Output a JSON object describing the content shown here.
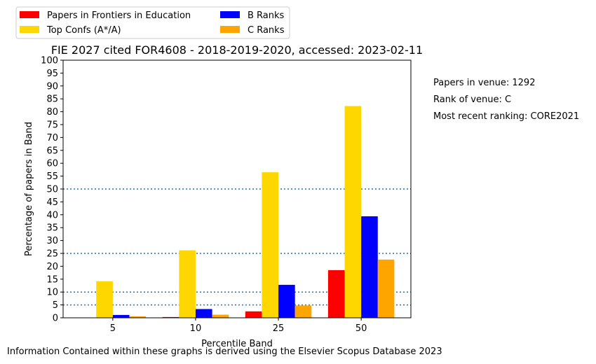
{
  "chart_data": {
    "type": "bar",
    "title": "FIE 2027 cited FOR4608 - 2018-2019-2020, accessed: 2023-02-11",
    "xlabel": "Percentile Band",
    "ylabel": "Percentage of papers in Band",
    "categories": [
      "5",
      "10",
      "25",
      "50"
    ],
    "ylim": [
      0,
      100
    ],
    "yticks": [
      0,
      5,
      10,
      15,
      20,
      25,
      30,
      35,
      40,
      45,
      50,
      55,
      60,
      65,
      70,
      75,
      80,
      85,
      90,
      95,
      100
    ],
    "reference_lines": [
      5,
      10,
      25,
      50
    ],
    "reference_line_color": "#1f77b4",
    "legend_position": "above-plot-left",
    "grid": false,
    "series": [
      {
        "name": "Papers in Frontiers in Education",
        "color": "#ff0000",
        "values": [
          0,
          0.3,
          2.5,
          18.5
        ]
      },
      {
        "name": "Top Confs (A*/A)",
        "color": "#ffd700",
        "values": [
          14.2,
          26.2,
          56.5,
          82.2
        ]
      },
      {
        "name": "B Ranks",
        "color": "#0000ff",
        "values": [
          1.1,
          3.4,
          12.8,
          39.4
        ]
      },
      {
        "name": "C Ranks",
        "color": "#ffa500",
        "values": [
          0.6,
          1.2,
          4.8,
          22.6
        ]
      }
    ]
  },
  "info": {
    "papers_in_venue": "Papers in venue: 1292",
    "rank_of_venue": "Rank of venue: C",
    "most_recent_ranking": "Most recent ranking: CORE2021"
  },
  "footer": "Information Contained within these graphs is derived using the Elsevier Scopus Database 2023"
}
